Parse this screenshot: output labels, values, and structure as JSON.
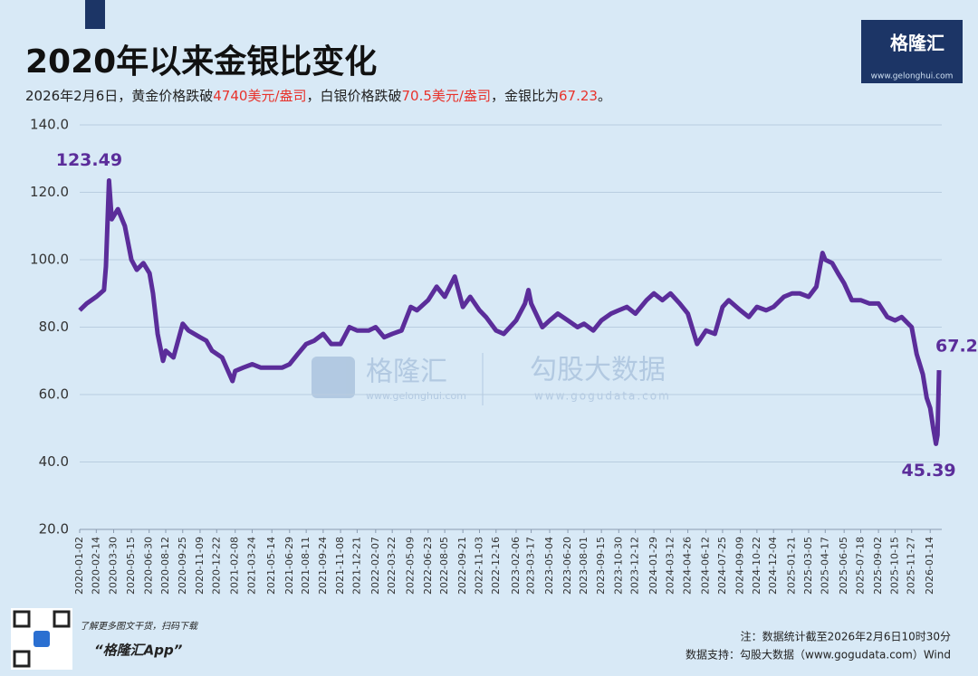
{
  "chart_data": {
    "type": "line",
    "title": "2020年以来金银比变化",
    "subtitle": [
      "2026年2月6日，黄金价格跌破",
      "4740美元/盎司",
      "，白银价格跌破",
      "70.5美元/盎司",
      "，金银比为",
      "67.23",
      "。"
    ],
    "highlight_color": "#e8322b",
    "x": [
      "2020-01-02",
      "2020-01-20",
      "2020-02-14",
      "2020-03-05",
      "2020-03-10",
      "2020-03-18",
      "2020-03-25",
      "2020-04-10",
      "2020-04-28",
      "2020-05-15",
      "2020-05-29",
      "2020-06-15",
      "2020-07-01",
      "2020-07-10",
      "2020-07-22",
      "2020-08-05",
      "2020-08-12",
      "2020-09-01",
      "2020-09-25",
      "2020-10-10",
      "2020-11-09",
      "2020-11-25",
      "2020-12-10",
      "2021-01-05",
      "2021-02-01",
      "2021-02-08",
      "2021-03-01",
      "2021-03-24",
      "2021-04-15",
      "2021-05-14",
      "2021-06-10",
      "2021-06-29",
      "2021-07-20",
      "2021-08-11",
      "2021-09-01",
      "2021-09-24",
      "2021-10-15",
      "2021-11-08",
      "2021-12-01",
      "2021-12-21",
      "2022-01-20",
      "2022-02-07",
      "2022-03-01",
      "2022-03-22",
      "2022-04-15",
      "2022-05-09",
      "2022-05-25",
      "2022-06-23",
      "2022-07-15",
      "2022-08-05",
      "2022-08-31",
      "2022-09-21",
      "2022-10-10",
      "2022-11-03",
      "2022-11-20",
      "2022-12-16",
      "2023-01-05",
      "2023-02-06",
      "2023-03-01",
      "2023-03-10",
      "2023-03-17",
      "2023-04-15",
      "2023-05-04",
      "2023-05-25",
      "2023-06-20",
      "2023-07-15",
      "2023-08-01",
      "2023-08-25",
      "2023-09-15",
      "2023-10-10",
      "2023-10-30",
      "2023-11-20",
      "2023-12-12",
      "2024-01-10",
      "2024-01-29",
      "2024-02-20",
      "2024-03-12",
      "2024-04-05",
      "2024-04-26",
      "2024-05-20",
      "2024-06-12",
      "2024-07-05",
      "2024-07-25",
      "2024-08-10",
      "2024-09-09",
      "2024-10-01",
      "2024-10-22",
      "2024-11-15",
      "2024-12-04",
      "2024-12-31",
      "2025-01-21",
      "2025-02-10",
      "2025-03-05",
      "2025-03-25",
      "2025-04-10",
      "2025-04-17",
      "2025-05-05",
      "2025-05-20",
      "2025-06-05",
      "2025-06-25",
      "2025-07-18",
      "2025-08-10",
      "2025-09-02",
      "2025-09-25",
      "2025-10-15",
      "2025-11-01",
      "2025-11-27",
      "2025-12-10",
      "2025-12-26",
      "2026-01-05",
      "2026-01-14",
      "2026-01-22",
      "2026-01-29",
      "2026-02-02",
      "2026-02-06"
    ],
    "series": [
      {
        "color": "#5b2d9a",
        "values": [
          85,
          87,
          89,
          91,
          98,
          123.49,
          112,
          115,
          110,
          100,
          97,
          99,
          96,
          90,
          78,
          70,
          73,
          71,
          81,
          79,
          77,
          76,
          73,
          71,
          64,
          67,
          68,
          69,
          68,
          68,
          68,
          69,
          72,
          75,
          76,
          78,
          75,
          75,
          80,
          79,
          79,
          80,
          77,
          78,
          79,
          86,
          85,
          88,
          92,
          89,
          95,
          86,
          89,
          85,
          83,
          79,
          78,
          82,
          87,
          91,
          87,
          80,
          82,
          84,
          82,
          80,
          81,
          79,
          82,
          84,
          85,
          86,
          84,
          88,
          90,
          88,
          90,
          87,
          84,
          75,
          79,
          78,
          86,
          88,
          85,
          83,
          86,
          85,
          86,
          89,
          90,
          90,
          89,
          92,
          102,
          100,
          99,
          96,
          93,
          88,
          88,
          87,
          87,
          83,
          82,
          83,
          80,
          72,
          66,
          59,
          56,
          50,
          45.39,
          48,
          67.23
        ]
      }
    ],
    "data_labels": [
      "max",
      "min",
      "last"
    ],
    "xlim": [
      "2020-01-02",
      "2026-02-06"
    ],
    "xticks": [
      "2020-01-02",
      "2020-02-14",
      "2020-03-30",
      "2020-05-15",
      "2020-06-30",
      "2020-08-12",
      "2020-09-25",
      "2020-11-09",
      "2020-12-22",
      "2021-02-08",
      "2021-03-24",
      "2021-05-14",
      "2021-06-29",
      "2021-08-11",
      "2021-09-24",
      "2021-11-08",
      "2021-12-21",
      "2022-02-07",
      "2022-03-22",
      "2022-05-09",
      "2022-06-23",
      "2022-08-05",
      "2022-09-21",
      "2022-11-03",
      "2022-12-16",
      "2023-02-06",
      "2023-03-17",
      "2023-05-04",
      "2023-06-20",
      "2023-08-01",
      "2023-09-15",
      "2023-10-30",
      "2023-12-12",
      "2024-01-29",
      "2024-03-12",
      "2024-04-26",
      "2024-06-12",
      "2024-07-25",
      "2024-09-09",
      "2024-10-22",
      "2024-12-04",
      "2025-01-21",
      "2025-03-05",
      "2025-04-17",
      "2025-06-05",
      "2025-07-18",
      "2025-09-02",
      "2025-10-15",
      "2025-11-27",
      "2026-01-14"
    ],
    "ylim": [
      20,
      140
    ],
    "yticks": [
      {
        "value": 20,
        "label": "20.0"
      },
      {
        "value": 40,
        "label": "40.0"
      },
      {
        "value": 60,
        "label": "60.0"
      },
      {
        "value": 80,
        "label": "80.0"
      },
      {
        "value": 100,
        "label": "100.0"
      },
      {
        "value": 120,
        "label": "120.0"
      },
      {
        "value": 140,
        "label": "140.0"
      }
    ],
    "grid": true
  },
  "branding": {
    "logo": "格隆汇",
    "logo_url": "www.gelonghui.com",
    "watermark_brand": "格隆汇",
    "watermark_brand_url": "www.gelonghui.com",
    "watermark_data": "勾股大数据",
    "watermark_data_url": "www.gogudata.com",
    "qr_caption": "了解更多图文干货，扫码下载",
    "app_name": "“格隆汇App”",
    "note": "注：数据统计截至2026年2月6日10时30分",
    "source": "数据支持：勾股大数据（www.gogudata.com）Wind"
  }
}
